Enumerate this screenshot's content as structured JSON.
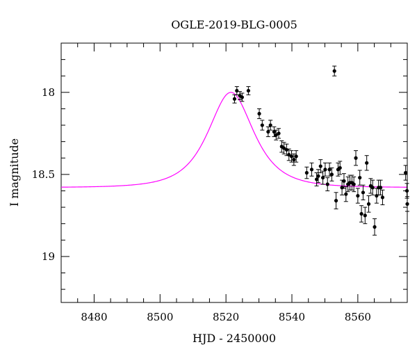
{
  "chart_data": {
    "type": "scatter",
    "title": "OGLE-2019-BLG-0005",
    "xlabel": "HJD - 2450000",
    "ylabel": "I magnitude",
    "xlim": [
      8470,
      8575
    ],
    "ylim": [
      19.28,
      17.7
    ],
    "y_inverted": true,
    "grid": false,
    "x_ticks": [
      8480,
      8500,
      8520,
      8540,
      8560
    ],
    "y_ticks": [
      18,
      18.5,
      19
    ],
    "x_tick_labels": [
      "8480",
      "8500",
      "8520",
      "8540",
      "8560"
    ],
    "y_tick_labels": [
      "18",
      "18.5",
      "19"
    ],
    "model": {
      "color": "#ff00ff",
      "t0": 8521.5,
      "tE": 8.8,
      "base_mag": 18.58,
      "peak_mag": 18.0
    },
    "observations": {
      "color": "#000000",
      "x": [
        8522.6,
        8523.3,
        8524.2,
        8524.9,
        8526.8,
        8530.1,
        8531.0,
        8532.8,
        8533.5,
        8534.6,
        8535.2,
        8536.0,
        8536.9,
        8537.6,
        8538.4,
        8539.1,
        8539.9,
        8540.6,
        8541.3,
        8544.5,
        8546.0,
        8547.5,
        8548.0,
        8548.7,
        8549.4,
        8550.1,
        8550.8,
        8551.4,
        8552.1,
        8552.9,
        8553.4,
        8554.0,
        8554.6,
        8555.2,
        8555.8,
        8556.4,
        8557.0,
        8557.6,
        8558.2,
        8558.8,
        8559.4,
        8560.0,
        8560.6,
        8561.1,
        8561.6,
        8562.2,
        8562.7,
        8563.3,
        8563.9,
        8564.5,
        8565.1,
        8565.7,
        8566.3,
        8566.9,
        8567.5,
        8574.5,
        8574.9,
        8575.0
      ],
      "y": [
        18.04,
        17.99,
        18.02,
        18.03,
        17.99,
        18.13,
        18.2,
        18.24,
        18.2,
        18.24,
        18.26,
        18.25,
        18.33,
        18.34,
        18.35,
        18.38,
        18.39,
        18.41,
        18.39,
        18.49,
        18.47,
        18.53,
        18.51,
        18.45,
        18.52,
        18.47,
        18.56,
        18.47,
        18.5,
        17.87,
        18.66,
        18.47,
        18.46,
        18.58,
        18.54,
        18.62,
        18.56,
        18.55,
        18.55,
        18.56,
        18.4,
        18.63,
        18.52,
        18.74,
        18.61,
        18.75,
        18.43,
        18.68,
        18.57,
        18.58,
        18.82,
        18.63,
        18.58,
        18.58,
        18.64,
        18.49,
        18.6,
        18.68
      ],
      "yerr": [
        0.025,
        0.025,
        0.025,
        0.025,
        0.025,
        0.03,
        0.03,
        0.03,
        0.03,
        0.03,
        0.03,
        0.03,
        0.035,
        0.035,
        0.035,
        0.035,
        0.035,
        0.035,
        0.035,
        0.035,
        0.04,
        0.04,
        0.04,
        0.04,
        0.04,
        0.04,
        0.04,
        0.04,
        0.04,
        0.03,
        0.05,
        0.04,
        0.04,
        0.045,
        0.045,
        0.045,
        0.045,
        0.045,
        0.045,
        0.045,
        0.045,
        0.045,
        0.045,
        0.05,
        0.045,
        0.05,
        0.045,
        0.05,
        0.045,
        0.045,
        0.05,
        0.045,
        0.045,
        0.045,
        0.045,
        0.045,
        0.045,
        0.045
      ]
    }
  }
}
